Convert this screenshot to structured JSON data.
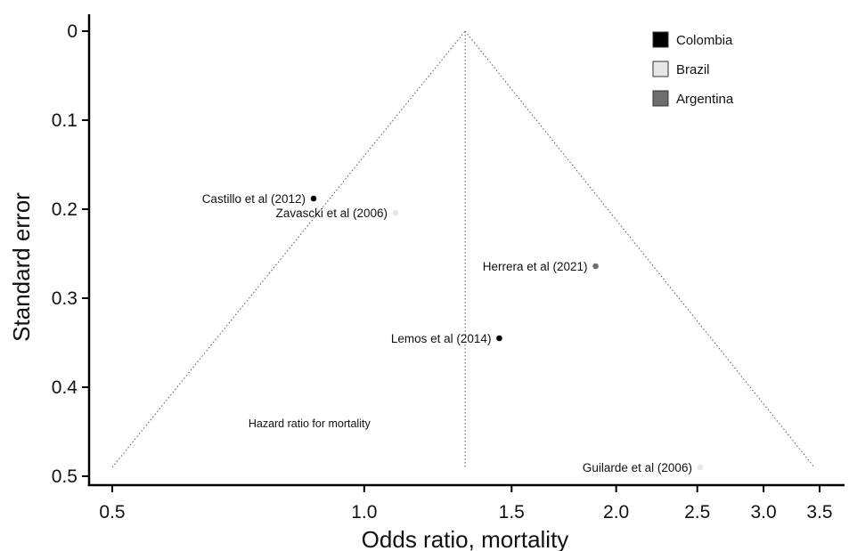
{
  "chart_data": {
    "type": "scatter",
    "title": "",
    "xlabel": "Odds ratio, mortality",
    "ylabel": "Standard error",
    "x_scale": "log",
    "xlim": [
      0.5,
      3.5
    ],
    "ylim": [
      0.5,
      0
    ],
    "y_inverted": true,
    "x_ticks": [
      {
        "value": 0.5,
        "label": "0.5"
      },
      {
        "value": 1.0,
        "label": "1.0"
      },
      {
        "value": 1.5,
        "label": "1.5"
      },
      {
        "value": 2.0,
        "label": "2.0"
      },
      {
        "value": 2.5,
        "label": "2.5"
      },
      {
        "value": 3.0,
        "label": "3.0"
      },
      {
        "value": 3.5,
        "label": "3.5"
      }
    ],
    "y_ticks": [
      {
        "value": 0,
        "label": "0"
      },
      {
        "value": 0.1,
        "label": "0.1"
      },
      {
        "value": 0.2,
        "label": "0.2"
      },
      {
        "value": 0.3,
        "label": "0.3"
      },
      {
        "value": 0.4,
        "label": "0.4"
      },
      {
        "value": 0.5,
        "label": "0.5"
      }
    ],
    "grid": false,
    "legend_position": "top-right",
    "legend": [
      {
        "name": "Colombia",
        "color": "#000000"
      },
      {
        "name": "Brazil",
        "color": "#e6e6e6"
      },
      {
        "name": "Argentina",
        "color": "#6e6e6e"
      }
    ],
    "funnel": {
      "pooled_or": 1.32,
      "apex_se": 0,
      "base_se": 0.49,
      "left_or_at_base": 0.5,
      "right_or_at_base": 3.45
    },
    "points": [
      {
        "label": "Castillo et al (2012)",
        "or": 0.87,
        "se": 0.188,
        "country": "Colombia",
        "color": "#000000"
      },
      {
        "label": "Zavascki et al (2006)",
        "or": 1.09,
        "se": 0.204,
        "country": "Brazil",
        "color": "#e6e6e6"
      },
      {
        "label": "Herrera et al (2021)",
        "or": 1.89,
        "se": 0.264,
        "country": "Argentina",
        "color": "#6e6e6e"
      },
      {
        "label": "Lemos et al (2014)",
        "or": 1.45,
        "se": 0.345,
        "country": "Colombia",
        "color": "#000000"
      },
      {
        "label": "Guilarde et al (2006)",
        "or": 2.52,
        "se": 0.49,
        "country": "Brazil",
        "color": "#e6e6e6"
      }
    ],
    "annotations": [
      {
        "text": "Hazard ratio for mortality",
        "or": 0.86,
        "se": 0.44
      }
    ]
  }
}
